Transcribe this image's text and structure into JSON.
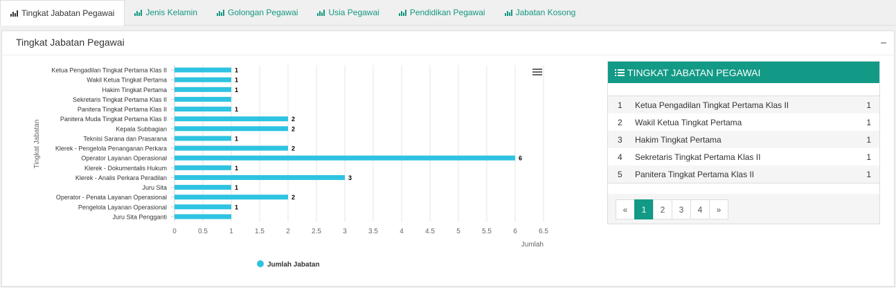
{
  "tabs": [
    "Tingkat Jabatan Pegawai",
    "Jenis Kelamin",
    "Golongan Pegawai",
    "Usia Pegawai",
    "Pendidikan Pegawai",
    "Jabatan Kosong"
  ],
  "panel": {
    "title": "Tingkat Jabatan Pegawai"
  },
  "chart_data": {
    "type": "bar",
    "orientation": "horizontal",
    "categories": [
      "Ketua Pengadilan Tingkat Pertama Klas II",
      "Wakil Ketua Tingkat Pertama",
      "Hakim Tingkat Pertama",
      "Sekretaris Tingkat Pertama Klas II",
      "Panitera Tingkat Pertama Klas II",
      "Panitera Muda Tingkat Pertama Klas II",
      "Kepala Subbagian",
      "Teknisi Sarana dan Prasarana",
      "Klerek - Pengelola Penanganan Perkara",
      "Operator Layanan Operasional",
      "Klerek - Dokumentalis Hukum",
      "Klerek - Analis Perkara Peradilan",
      "Juru Sita",
      "Operator - Penata Layanan Operasional",
      "Pengelola Layanan Operasional",
      "Juru Sita Pengganti"
    ],
    "series": [
      {
        "name": "Jumlah Jabatan",
        "color": "#2ec3e0",
        "values": [
          1,
          1,
          1,
          1,
          1,
          2,
          2,
          1,
          2,
          6,
          1,
          3,
          1,
          2,
          1,
          1
        ],
        "value_labels": [
          "1",
          "1",
          "1",
          null,
          "1",
          "2",
          "2",
          "1",
          "2",
          "6",
          "1",
          "3",
          "1",
          "2",
          "1",
          null
        ]
      }
    ],
    "xlim": [
      0,
      6.5
    ],
    "xticks": [
      0,
      0.5,
      1,
      1.5,
      2,
      2.5,
      3,
      3.5,
      4,
      4.5,
      5,
      5.5,
      6,
      6.5
    ],
    "x_label": "Jumlah",
    "y_label": "Tingkat Jabatan",
    "grid": true,
    "legend": "bottom"
  },
  "table": {
    "title": "TINGKAT JABATAN PEGAWAI",
    "rows": [
      [
        1,
        "Ketua Pengadilan Tingkat Pertama Klas II",
        1
      ],
      [
        2,
        "Wakil Ketua Tingkat Pertama",
        1
      ],
      [
        3,
        "Hakim Tingkat Pertama",
        1
      ],
      [
        4,
        "Sekretaris Tingkat Pertama Klas II",
        1
      ],
      [
        5,
        "Panitera Tingkat Pertama Klas II",
        1
      ]
    ]
  },
  "pagination": {
    "pages": [
      "«",
      "1",
      "2",
      "3",
      "4",
      "»"
    ],
    "active_index": 1
  }
}
